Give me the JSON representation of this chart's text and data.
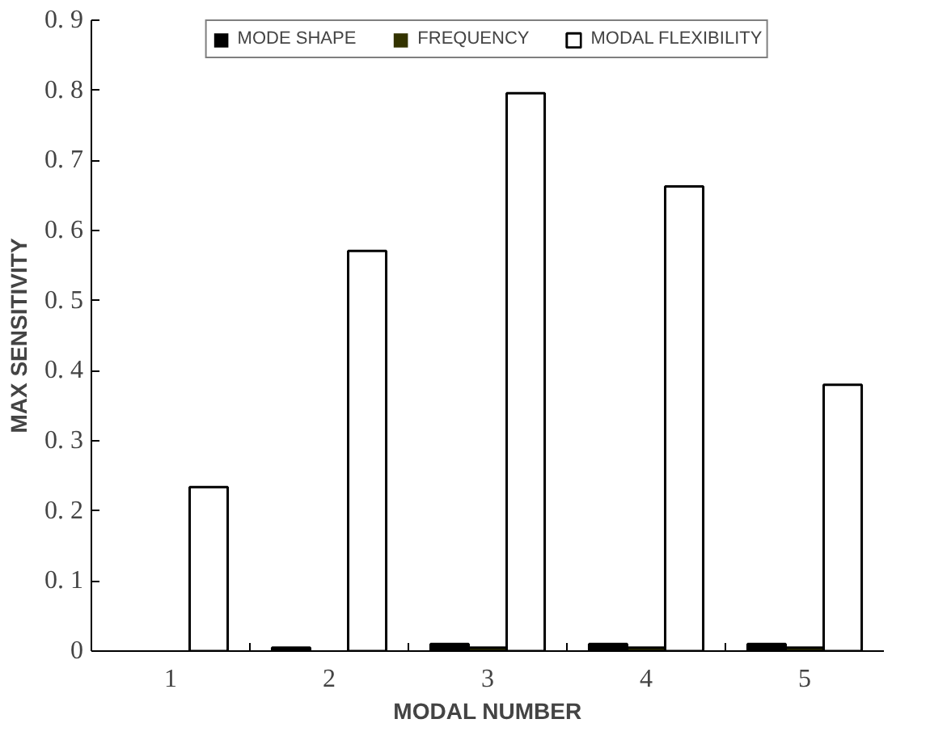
{
  "chart_data": {
    "type": "bar",
    "xlabel": "MODAL NUMBER",
    "ylabel": "MAX SENSITIVITY",
    "x": [
      1,
      2,
      3,
      4,
      5
    ],
    "series": [
      {
        "name": "MODE SHAPE",
        "color": "#000000",
        "values": [
          0,
          0.005,
          0.01,
          0.01,
          0.01
        ]
      },
      {
        "name": "FREQUENCY",
        "color": "#333300",
        "values": [
          0,
          0,
          0.005,
          0.005,
          0.005
        ]
      },
      {
        "name": "MODAL FLEXIBILITY",
        "color": "#ffffff",
        "values": [
          0.234,
          0.571,
          0.796,
          0.663,
          0.38
        ]
      }
    ],
    "xlim": [
      0.5,
      5.5
    ],
    "xticks": [
      1,
      2,
      3,
      4,
      5
    ],
    "ylim": [
      0,
      0.9
    ],
    "yticks": [
      0,
      0.1,
      0.2,
      0.3,
      0.4,
      0.5,
      0.6,
      0.7,
      0.8,
      0.9
    ],
    "grid": false,
    "legend": "top"
  }
}
